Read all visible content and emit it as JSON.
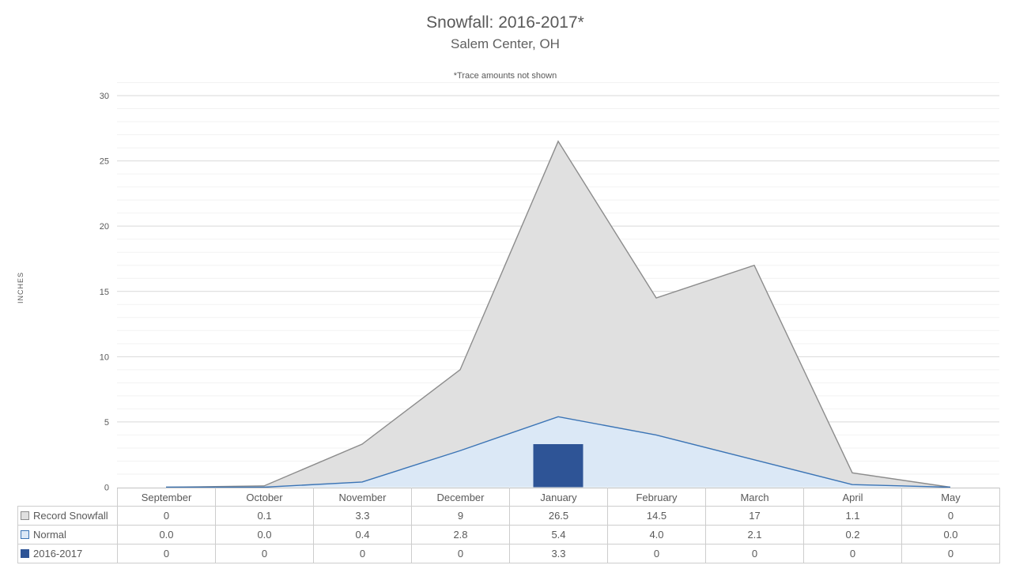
{
  "chart_data": {
    "type": "combo: area series + bar series, with data table",
    "title": "Snowfall: 2016-2017*",
    "subtitle": "Salem Center, OH",
    "footnote": "*Trace amounts not shown",
    "ylabel": "INCHES",
    "xlabel": "",
    "categories": [
      "September",
      "October",
      "November",
      "December",
      "January",
      "February",
      "March",
      "April",
      "May"
    ],
    "series": [
      {
        "name": "Record Snowfall",
        "chart_type": "area",
        "values": [
          0,
          0.1,
          3.3,
          9,
          26.5,
          14.5,
          17,
          1.1,
          0
        ],
        "display": [
          "0",
          "0.1",
          "3.3",
          "9",
          "26.5",
          "14.5",
          "17",
          "1.1",
          "0"
        ],
        "fill": "#e0e0e0",
        "stroke": "#8c8c8c"
      },
      {
        "name": "Normal",
        "chart_type": "area",
        "values": [
          0.0,
          0.0,
          0.4,
          2.8,
          5.4,
          4.0,
          2.1,
          0.2,
          0.0
        ],
        "display": [
          "0.0",
          "0.0",
          "0.4",
          "2.8",
          "5.4",
          "4.0",
          "2.1",
          "0.2",
          "0.0"
        ],
        "fill": "#dbe8f6",
        "stroke": "#3b74b5"
      },
      {
        "name": "2016-2017",
        "chart_type": "bar",
        "values": [
          0,
          0,
          0,
          0,
          3.3,
          0,
          0,
          0,
          0
        ],
        "display": [
          "0",
          "0",
          "0",
          "0",
          "3.3",
          "0",
          "0",
          "0",
          "0"
        ],
        "fill": "#2e5496",
        "stroke": "#2e5496"
      }
    ],
    "ylim": [
      0,
      30
    ],
    "yticks": [
      0,
      5,
      10,
      15,
      20,
      25,
      30
    ],
    "major_unit": 5,
    "minor_unit": 1,
    "grid": "horizontal major and minor gridlines",
    "legend_position": "series key swatches in data-table row labels",
    "colors": {
      "grid_major": "#d9d9d9",
      "grid_minor": "#f2f2f2",
      "axis_text": "#595959",
      "table_border": "#cdcdcd",
      "title_text": "#595959"
    }
  }
}
